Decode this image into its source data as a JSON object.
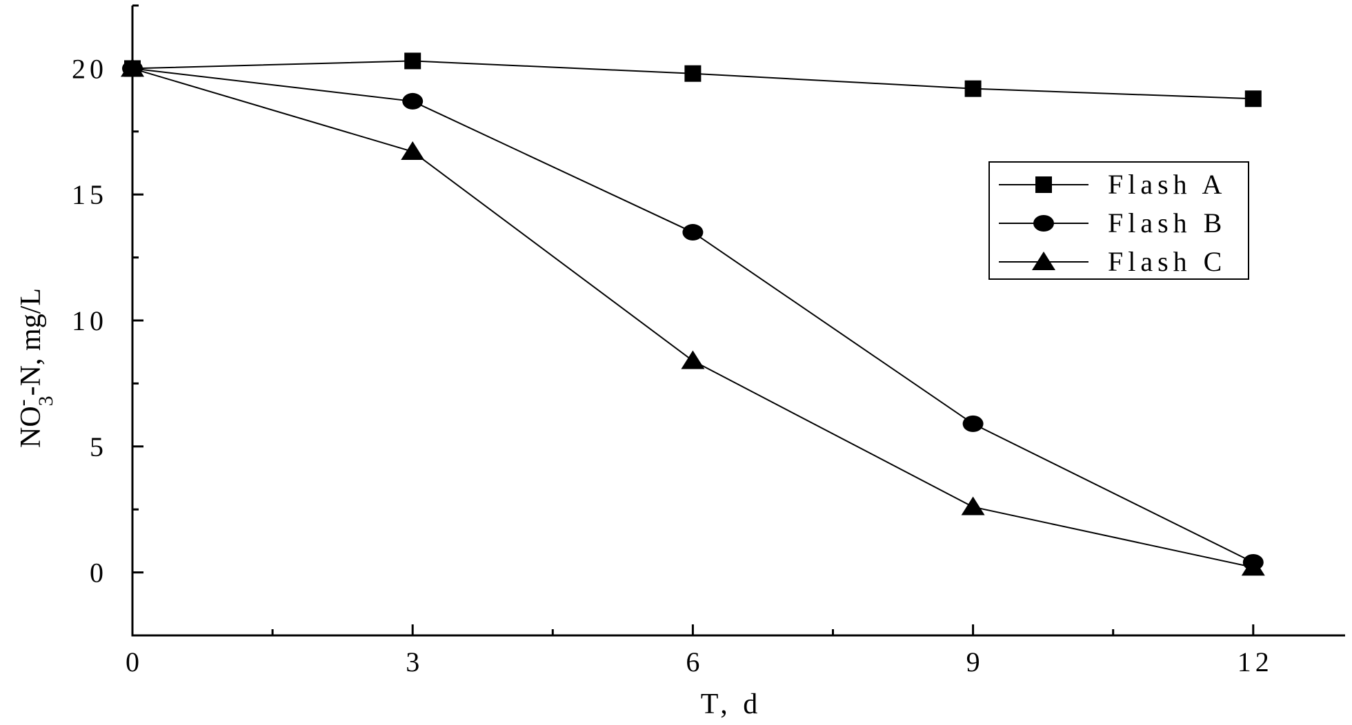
{
  "chart_data": {
    "type": "line",
    "title": "",
    "xlabel": "T, d",
    "ylabel": {
      "main": "NO",
      "superscript": "-",
      "subscript": "3",
      "rest": "-N, mg/L"
    },
    "x": [
      0,
      3,
      6,
      9,
      12
    ],
    "xlim": [
      0,
      13
    ],
    "ylim": [
      -2.5,
      22.5
    ],
    "x_major_ticks": [
      0,
      3,
      6,
      9,
      12
    ],
    "x_minor_ticks": [
      1.5,
      4.5,
      7.5,
      10.5
    ],
    "y_major_ticks": [
      0,
      5,
      10,
      15,
      20
    ],
    "y_minor_ticks": [
      -2.5,
      2.5,
      7.5,
      12.5,
      17.5,
      22.5
    ],
    "x_tick_labels": [
      "0",
      "3",
      "6",
      "9",
      "12"
    ],
    "y_tick_labels": [
      "0",
      "5",
      "10",
      "15",
      "20"
    ],
    "grid": false,
    "legend_position": "right",
    "series": [
      {
        "name": "Flash A",
        "marker": "square",
        "values": [
          20.0,
          20.3,
          19.8,
          19.2,
          18.8
        ]
      },
      {
        "name": "Flash B",
        "marker": "circle",
        "values": [
          20.0,
          18.7,
          13.5,
          5.9,
          0.4
        ]
      },
      {
        "name": "Flash C",
        "marker": "triangle",
        "values": [
          20.0,
          16.7,
          8.4,
          2.6,
          0.2
        ]
      }
    ]
  }
}
